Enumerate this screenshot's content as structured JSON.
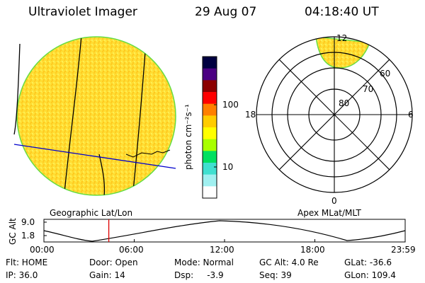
{
  "header": {
    "title": "Ultraviolet Imager",
    "date": "29 Aug 07",
    "time": "04:18:40 UT"
  },
  "colorbar": {
    "label": "photon cm⁻²s⁻¹",
    "ticks": [
      "100",
      "10"
    ],
    "colors": [
      "#000040",
      "#4b0082",
      "#8b0000",
      "#ff0000",
      "#ff7f00",
      "#ffcc00",
      "#ffff00",
      "#a8ff00",
      "#00e060",
      "#40e0d0",
      "#a0f0f0",
      "#ffffff"
    ]
  },
  "polar": {
    "lat_labels": [
      "80",
      "70",
      "60"
    ],
    "mlt_labels": {
      "top": "12",
      "bottom": "0",
      "left": "18",
      "right": "6"
    }
  },
  "altitude_panel": {
    "left_label": "Geographic Lat/Lon",
    "right_label": "Apex MLat/MLT",
    "y_label": "GC Alt",
    "y_ticks": [
      "9.0",
      "1.8"
    ],
    "x_ticks": [
      "00:00",
      "06:00",
      "12:00",
      "18:00",
      "23:59"
    ],
    "current_time_fraction": 0.1796
  },
  "status": {
    "row1": [
      "Flt: HOME",
      "Door: Open",
      "Mode: Normal",
      "GC Alt: 4.0 Re",
      "GLat: -36.6"
    ],
    "row2": [
      "IP: 36.0",
      "Gain: 14",
      "Dsp:     -3.9",
      "Seq: 39",
      "GLon: 109.4"
    ]
  },
  "colors": {
    "disk_fill": "#ffdd33",
    "disk_edge": "#66dd44",
    "projection_line": "#0000cc",
    "time_marker": "#dd0000"
  }
}
